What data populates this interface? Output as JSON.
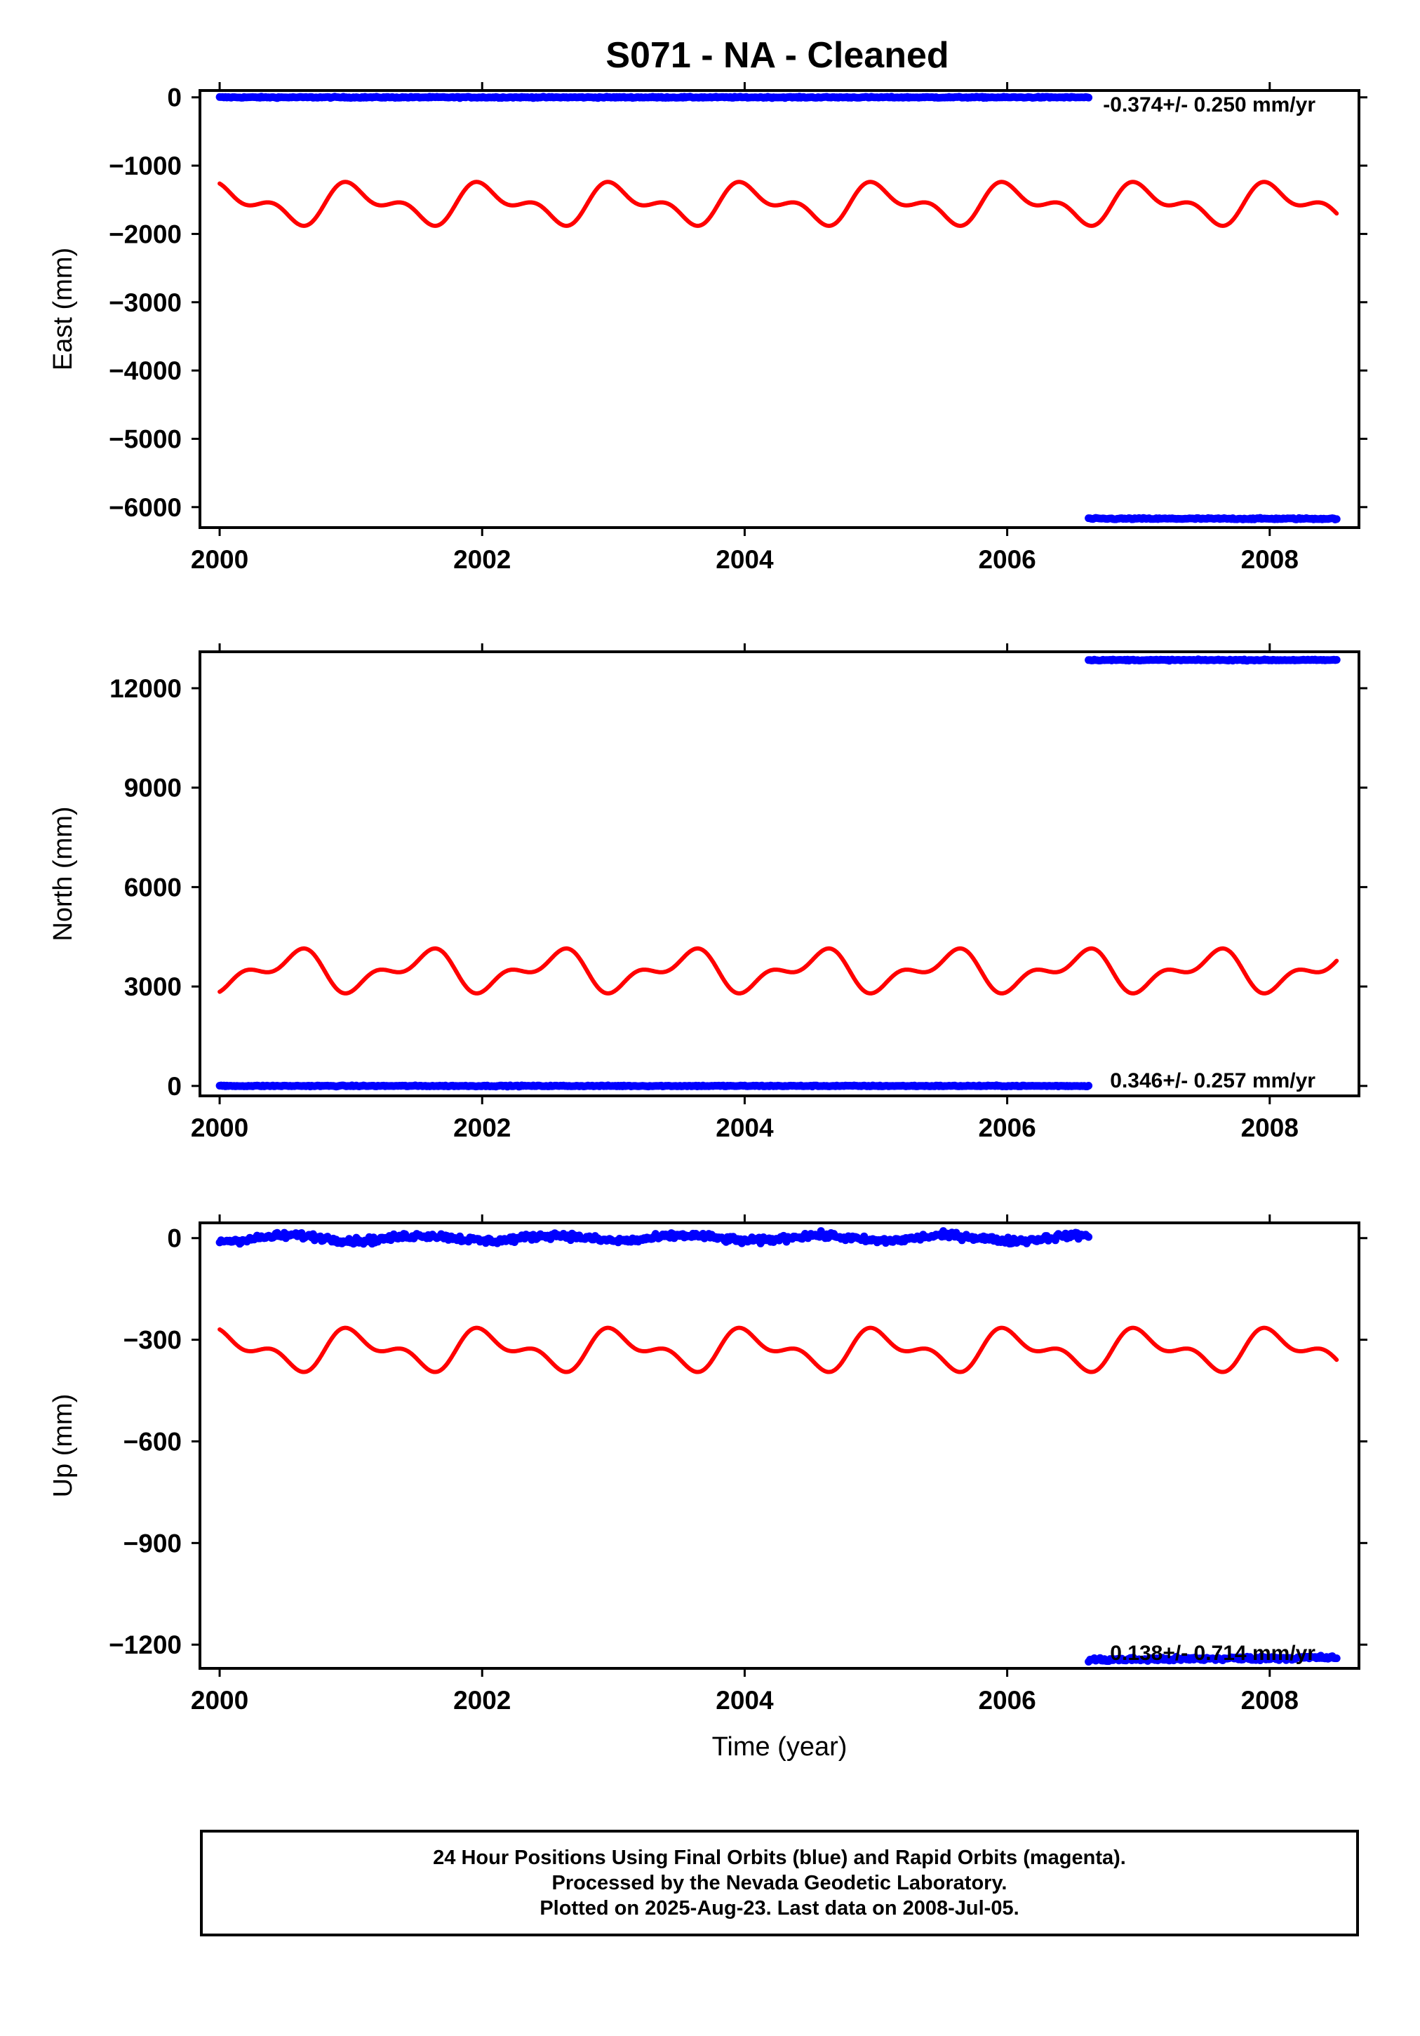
{
  "title": "S071  - NA - Cleaned",
  "colors": {
    "final_orbits": "#0000ff",
    "seasonal_model": "#ff0000",
    "axes": "#000000"
  },
  "chart_data": [
    {
      "type": "scatter",
      "panel": "east",
      "ylabel": "East (mm)",
      "xlabel": "",
      "xlim": [
        1999.85,
        2008.68
      ],
      "ylim": [
        -6300,
        100
      ],
      "x_ticks": [
        2000,
        2002,
        2004,
        2006,
        2008
      ],
      "x_tick_labels": [
        "2000",
        "2002",
        "2004",
        "2006",
        "2008"
      ],
      "y_ticks": [
        0,
        -1000,
        -2000,
        -3000,
        -4000,
        -5000,
        -6000
      ],
      "y_tick_labels": [
        "0",
        "−1000",
        "−2000",
        "−3000",
        "−4000",
        "−5000",
        "−6000"
      ],
      "annotation": "-0.374+/- 0.250 mm/yr",
      "series": [
        {
          "color": "#0000ff",
          "kind": "points",
          "segments": [
            {
              "x_start": 2000.0,
              "x_end": 2006.62,
              "y_start": 0,
              "y_end": 0,
              "trend": [
                [
                  2000.0,
                  0
                ],
                [
                  2003.0,
                  -10
                ],
                [
                  2005.0,
                  0
                ],
                [
                  2005.8,
                  30
                ],
                [
                  2006.62,
                  15
                ]
              ],
              "noise": 8
            },
            {
              "x_start": 2006.62,
              "x_end": 2008.51,
              "y_start": -6170,
              "y_end": -6170,
              "noise": 10
            }
          ]
        },
        {
          "color": "#ff0000",
          "kind": "line",
          "offset": -1560,
          "annual_amp": -220,
          "semiannual_amp": -150,
          "phase_origin": 2000.0,
          "x_start": 2000.0,
          "x_end": 2008.51
        }
      ]
    },
    {
      "type": "scatter",
      "panel": "north",
      "ylabel": "North (mm)",
      "xlabel": "",
      "xlim": [
        1999.85,
        2008.68
      ],
      "ylim": [
        -300,
        13100
      ],
      "x_ticks": [
        2000,
        2002,
        2004,
        2006,
        2008
      ],
      "x_tick_labels": [
        "2000",
        "2002",
        "2004",
        "2006",
        "2008"
      ],
      "y_ticks": [
        0,
        3000,
        6000,
        9000,
        12000
      ],
      "y_tick_labels": [
        "0",
        "3000",
        "6000",
        "9000",
        "12000"
      ],
      "annotation": "0.346+/- 0.257 mm/yr",
      "series": [
        {
          "color": "#0000ff",
          "kind": "points",
          "segments": [
            {
              "x_start": 2000.0,
              "x_end": 2006.62,
              "y_start": 0,
              "y_end": 0,
              "noise": 15
            },
            {
              "x_start": 2006.62,
              "x_end": 2008.51,
              "y_start": 12850,
              "y_end": 12850,
              "noise": 15
            }
          ]
        },
        {
          "color": "#ff0000",
          "kind": "line",
          "offset": 3470,
          "annual_amp": 470,
          "semiannual_amp": 310,
          "phase_origin": 2000.0,
          "x_start": 2000.0,
          "x_end": 2008.51
        }
      ]
    },
    {
      "type": "scatter",
      "panel": "up",
      "ylabel": "Up (mm)",
      "xlabel": "Time (year)",
      "xlim": [
        1999.85,
        2008.68
      ],
      "ylim": [
        -1270,
        45
      ],
      "x_ticks": [
        2000,
        2002,
        2004,
        2006,
        2008
      ],
      "x_tick_labels": [
        "2000",
        "2002",
        "2004",
        "2006",
        "2008"
      ],
      "y_ticks": [
        0,
        -300,
        -600,
        -900,
        -1200
      ],
      "y_tick_labels": [
        "0",
        "−300",
        "−600",
        "−900",
        "−1200"
      ],
      "annotation": "0.138+/- 0.714 mm/yr",
      "series": [
        {
          "color": "#0000ff",
          "kind": "points",
          "segments": [
            {
              "x_start": 2000.0,
              "x_end": 2006.62,
              "y_start": 0,
              "y_end": 0,
              "noise": 9,
              "seasonal_amp": 8
            },
            {
              "x_start": 2006.62,
              "x_end": 2008.51,
              "y_start": -1245,
              "y_end": -1238,
              "noise": 6
            }
          ]
        },
        {
          "color": "#ff0000",
          "kind": "line",
          "offset": -330,
          "annual_amp": -45,
          "semiannual_amp": -30,
          "phase_origin": 2000.0,
          "x_start": 2000.0,
          "x_end": 2008.51
        }
      ]
    }
  ],
  "caption": {
    "line1": "24 Hour Positions Using Final Orbits (blue) and Rapid Orbits (magenta).",
    "line2": "Processed by the Nevada Geodetic Laboratory.",
    "line3": "Plotted on 2025-Aug-23. Last data on 2008-Jul-05."
  }
}
